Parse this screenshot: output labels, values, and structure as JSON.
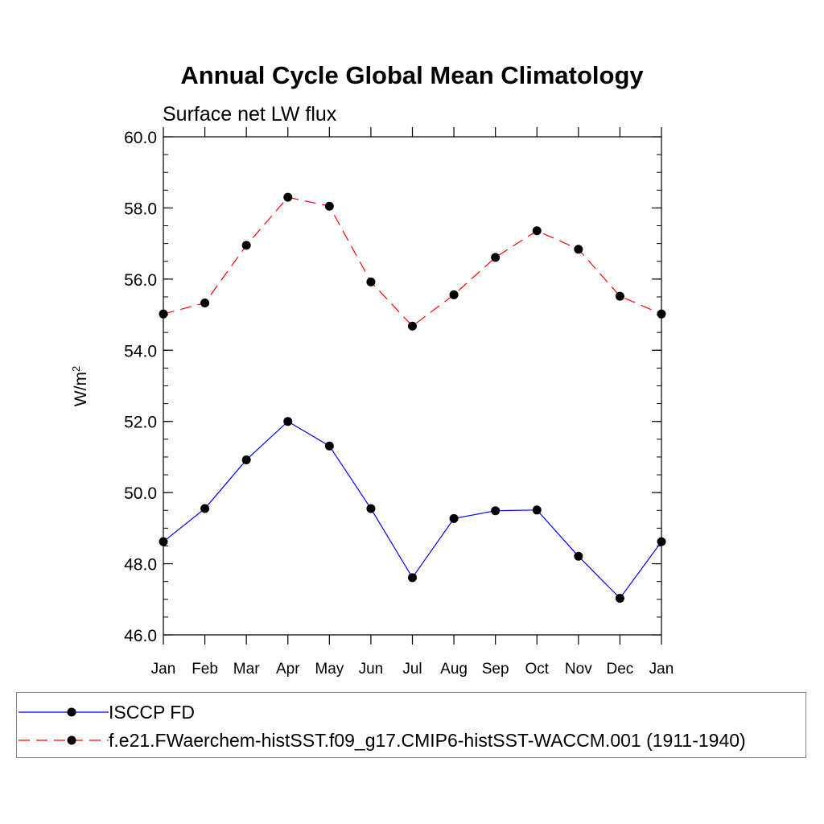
{
  "chart_data": {
    "type": "line",
    "title": "Annual Cycle Global Mean Climatology",
    "subtitle": "Surface net LW flux",
    "ylabel": "W/m",
    "ylabel_superscript": "2",
    "ylim": [
      46.0,
      60.0
    ],
    "yticks": [
      "46.0",
      "48.0",
      "50.0",
      "52.0",
      "54.0",
      "56.0",
      "58.0",
      "60.0"
    ],
    "categories": [
      "Jan",
      "Feb",
      "Mar",
      "Apr",
      "May",
      "Jun",
      "Jul",
      "Aug",
      "Sep",
      "Oct",
      "Nov",
      "Dec",
      "Jan"
    ],
    "grid": false,
    "legend_position": "bottom",
    "series": [
      {
        "name": "ISCCP FD",
        "color": "#0000ff",
        "line_style": "solid",
        "marker": "filled-circle",
        "values": [
          48.62,
          49.55,
          50.92,
          52.0,
          51.31,
          49.55,
          47.61,
          49.27,
          49.49,
          49.51,
          48.21,
          47.03,
          48.62
        ]
      },
      {
        "name": "f.e21.FWaerchem-histSST.f09_g17.CMIP6-histSST-WACCM.001 (1911-1940)",
        "color": "#ff0000",
        "line_style": "dashed",
        "marker": "filled-circle",
        "values": [
          55.02,
          55.33,
          56.95,
          58.3,
          58.05,
          55.92,
          54.68,
          55.56,
          56.61,
          57.36,
          56.84,
          55.52,
          55.02
        ]
      }
    ]
  }
}
